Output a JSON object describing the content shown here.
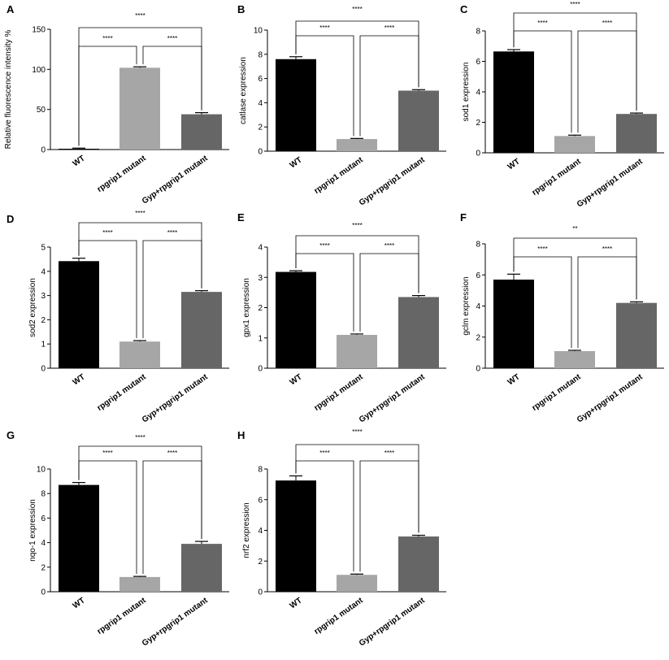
{
  "colors": {
    "wt": "#000000",
    "mutant": "#a6a6a6",
    "rescue": "#666666",
    "axis": "#000000"
  },
  "chart_data": [
    {
      "type": "bar",
      "panel": "A",
      "ylabel": "Relative fluorescence intensity %",
      "categories": [
        "WT",
        "rpgrip1 mutant",
        "Gyp+rpgrip1 mutant"
      ],
      "values": [
        1.0,
        102,
        44
      ],
      "errors": [
        0.8,
        1.2,
        2.0
      ],
      "ylim": [
        0,
        150
      ],
      "yticks": [
        "0",
        "50",
        "100",
        "150"
      ],
      "significance": [
        {
          "pair": [
            0,
            1
          ],
          "label": "****",
          "level": "lower"
        },
        {
          "pair": [
            1,
            2
          ],
          "label": "****",
          "level": "lower"
        },
        {
          "pair": [
            0,
            2
          ],
          "label": "****",
          "level": "upper"
        }
      ]
    },
    {
      "type": "bar",
      "panel": "B",
      "ylabel": "catlase expression",
      "categories": [
        "WT",
        "rpgrip1 mutant",
        "Gyp+rpgrip1 mutant"
      ],
      "values": [
        7.6,
        1.0,
        5.0
      ],
      "errors": [
        0.2,
        0.05,
        0.08
      ],
      "ylim": [
        0,
        10
      ],
      "yticks": [
        "0",
        "2",
        "4",
        "6",
        "8",
        "10"
      ],
      "significance": [
        {
          "pair": [
            0,
            1
          ],
          "label": "****",
          "level": "lower"
        },
        {
          "pair": [
            1,
            2
          ],
          "label": "****",
          "level": "lower"
        },
        {
          "pair": [
            0,
            2
          ],
          "label": "****",
          "level": "upper"
        }
      ]
    },
    {
      "type": "bar",
      "panel": "C",
      "ylabel": "sod1 expression",
      "categories": [
        "WT",
        "rpgrip1 mutant",
        "Gyp+rpgrip1 mutant"
      ],
      "values": [
        6.65,
        1.1,
        2.55
      ],
      "errors": [
        0.12,
        0.06,
        0.06
      ],
      "ylim": [
        0,
        8
      ],
      "yticks": [
        "0",
        "2",
        "4",
        "6",
        "8"
      ],
      "significance": [
        {
          "pair": [
            0,
            1
          ],
          "label": "****",
          "level": "lower"
        },
        {
          "pair": [
            1,
            2
          ],
          "label": "****",
          "level": "lower"
        },
        {
          "pair": [
            0,
            2
          ],
          "label": "****",
          "level": "upper"
        }
      ]
    },
    {
      "type": "bar",
      "panel": "D",
      "ylabel": "sod2 expression",
      "categories": [
        "WT",
        "rpgrip1 mutant",
        "Gyp+rpgrip1 mutant"
      ],
      "values": [
        4.42,
        1.1,
        3.15
      ],
      "errors": [
        0.12,
        0.04,
        0.05
      ],
      "ylim": [
        0,
        5
      ],
      "yticks": [
        "0",
        "1",
        "2",
        "3",
        "4",
        "5"
      ],
      "significance": [
        {
          "pair": [
            0,
            1
          ],
          "label": "****",
          "level": "lower"
        },
        {
          "pair": [
            1,
            2
          ],
          "label": "****",
          "level": "lower"
        },
        {
          "pair": [
            0,
            2
          ],
          "label": "****",
          "level": "upper"
        }
      ]
    },
    {
      "type": "bar",
      "panel": "E",
      "ylabel": "gpx1 expression",
      "categories": [
        "WT",
        "rpgrip1 mutant",
        "Gyp+rpgrip1 mutant"
      ],
      "values": [
        3.18,
        1.1,
        2.35
      ],
      "errors": [
        0.04,
        0.03,
        0.05
      ],
      "ylim": [
        0,
        4
      ],
      "yticks": [
        "0",
        "1",
        "2",
        "3",
        "4"
      ],
      "significance": [
        {
          "pair": [
            0,
            1
          ],
          "label": "****",
          "level": "lower"
        },
        {
          "pair": [
            1,
            2
          ],
          "label": "****",
          "level": "lower"
        },
        {
          "pair": [
            0,
            2
          ],
          "label": "****",
          "level": "upper"
        }
      ]
    },
    {
      "type": "bar",
      "panel": "F",
      "ylabel": "gclm expression",
      "categories": [
        "WT",
        "rpgrip1 mutant",
        "Gyp+rpgrip1 mutant"
      ],
      "values": [
        5.7,
        1.1,
        4.2
      ],
      "errors": [
        0.35,
        0.05,
        0.07
      ],
      "ylim": [
        0,
        8
      ],
      "yticks": [
        "0",
        "2",
        "4",
        "6",
        "8"
      ],
      "significance": [
        {
          "pair": [
            0,
            1
          ],
          "label": "****",
          "level": "lower"
        },
        {
          "pair": [
            1,
            2
          ],
          "label": "****",
          "level": "lower"
        },
        {
          "pair": [
            0,
            2
          ],
          "label": "**",
          "level": "upper"
        }
      ]
    },
    {
      "type": "bar",
      "panel": "G",
      "ylabel": "nqo-1 expression",
      "categories": [
        "WT",
        "rpgrip1 mutant",
        "Gyp+rpgrip1 mutant"
      ],
      "values": [
        8.7,
        1.2,
        3.9
      ],
      "errors": [
        0.2,
        0.05,
        0.2
      ],
      "ylim": [
        0,
        10
      ],
      "yticks": [
        "0",
        "2",
        "4",
        "6",
        "8",
        "10"
      ],
      "significance": [
        {
          "pair": [
            0,
            1
          ],
          "label": "****",
          "level": "lower"
        },
        {
          "pair": [
            1,
            2
          ],
          "label": "****",
          "level": "lower"
        },
        {
          "pair": [
            0,
            2
          ],
          "label": "****",
          "level": "upper"
        }
      ]
    },
    {
      "type": "bar",
      "panel": "H",
      "ylabel": "nrf2 expression",
      "categories": [
        "WT",
        "rpgrip1 mutant",
        "Gyp+rpgrip1 mutant"
      ],
      "values": [
        7.25,
        1.1,
        3.6
      ],
      "errors": [
        0.3,
        0.05,
        0.08
      ],
      "ylim": [
        0,
        8
      ],
      "yticks": [
        "0",
        "2",
        "4",
        "6",
        "8"
      ],
      "significance": [
        {
          "pair": [
            0,
            1
          ],
          "label": "****",
          "level": "lower"
        },
        {
          "pair": [
            1,
            2
          ],
          "label": "****",
          "level": "lower"
        },
        {
          "pair": [
            0,
            2
          ],
          "label": "****",
          "level": "upper"
        }
      ]
    }
  ]
}
